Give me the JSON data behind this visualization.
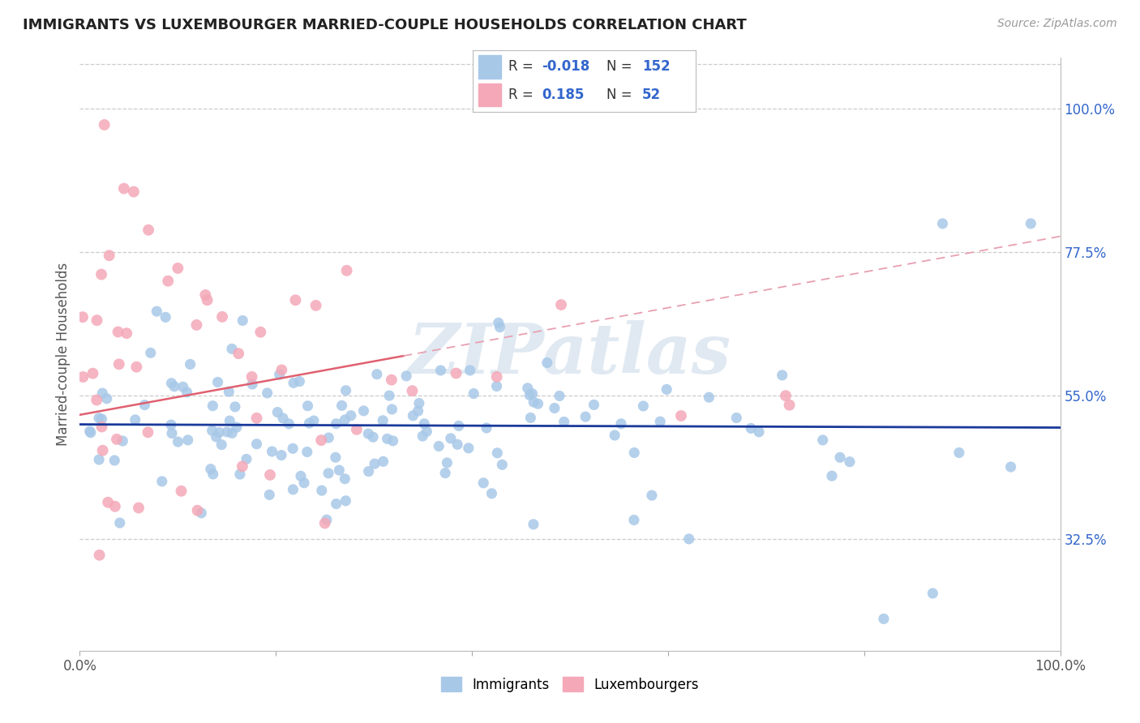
{
  "title": "IMMIGRANTS VS LUXEMBOURGER MARRIED-COUPLE HOUSEHOLDS CORRELATION CHART",
  "source": "Source: ZipAtlas.com",
  "ylabel": "Married-couple Households",
  "legend_blue_R": "-0.018",
  "legend_blue_N": "152",
  "legend_pink_R": "0.185",
  "legend_pink_N": "52",
  "blue_color": "#a8c8e8",
  "blue_line_color": "#1a3a9a",
  "pink_color": "#f4a8b8",
  "pink_line_color": "#e06070",
  "pink_dash_color": "#e8a0b0",
  "watermark": "ZIPatlas",
  "background_color": "#ffffff",
  "grid_color": "#cccccc",
  "x_min": 0.0,
  "x_max": 1.0,
  "y_min": 0.15,
  "y_max": 1.08,
  "ytick_vals": [
    0.325,
    0.55,
    0.775,
    1.0
  ],
  "ytick_labels": [
    "32.5%",
    "55.0%",
    "77.5%",
    "100.0%"
  ]
}
